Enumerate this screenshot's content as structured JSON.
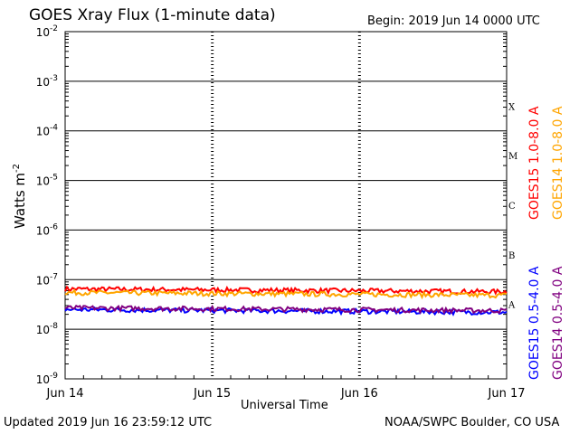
{
  "header": {
    "title": "GOES Xray Flux (1-minute data)",
    "begin": "Begin:  2019 Jun 14 0000 UTC"
  },
  "footer": {
    "updated": "Updated 2019 Jun 16 23:59:12 UTC",
    "credit": "NOAA/SWPC Boulder, CO USA"
  },
  "chart_data": {
    "type": "line",
    "title": "GOES Xray Flux (1-minute data)",
    "xlabel": "Universal Time",
    "ylabel_main": "Watts m",
    "ylabel_sup": "-2",
    "yscale": "log",
    "ylim": [
      1e-09,
      0.01
    ],
    "x_ticks": [
      "Jun 14",
      "Jun 15",
      "Jun 16",
      "Jun 17"
    ],
    "xlim": [
      "2019-06-14",
      "2019-06-17"
    ],
    "y_ticks": [
      {
        "base": "10",
        "exp": "-2"
      },
      {
        "base": "10",
        "exp": "-3"
      },
      {
        "base": "10",
        "exp": "-4"
      },
      {
        "base": "10",
        "exp": "-5"
      },
      {
        "base": "10",
        "exp": "-6"
      },
      {
        "base": "10",
        "exp": "-7"
      },
      {
        "base": "10",
        "exp": "-8"
      },
      {
        "base": "10",
        "exp": "-9"
      }
    ],
    "flare_classes": [
      "X",
      "M",
      "C",
      "B",
      "A"
    ],
    "series": [
      {
        "name": "GOES15 1.0-8.0 A",
        "color": "#ff0000",
        "level": 6.5e-08
      },
      {
        "name": "GOES14 1.0-8.0 A",
        "color": "#ffa500",
        "level": 5.5e-08
      },
      {
        "name": "GOES15 0.5-4.0 A",
        "color": "#0000ff",
        "level": 2.5e-08
      },
      {
        "name": "GOES14 0.5-4.0 A",
        "color": "#800080",
        "level": 2.7e-08
      }
    ],
    "grid": true
  }
}
